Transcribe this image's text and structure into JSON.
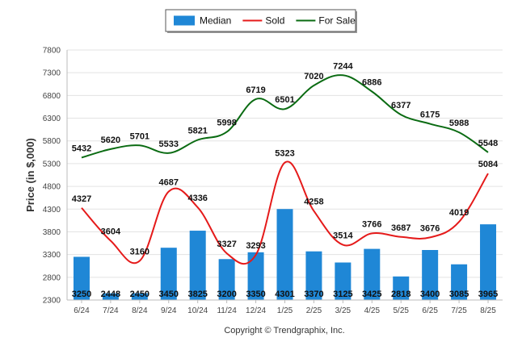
{
  "chart_data": {
    "type": "bar",
    "categories": [
      "6/24",
      "7/24",
      "8/24",
      "9/24",
      "10/24",
      "11/24",
      "12/24",
      "1/25",
      "2/25",
      "3/25",
      "4/25",
      "5/25",
      "6/25",
      "7/25",
      "8/25"
    ],
    "ylabel": "Price (in $,000)",
    "ylim": [
      2300,
      7800
    ],
    "yticks": [
      2300,
      2800,
      3300,
      3800,
      4300,
      4800,
      5300,
      5800,
      6300,
      6800,
      7300,
      7800
    ],
    "grid": true,
    "legend_position": "top-center",
    "series": [
      {
        "name": "Median",
        "kind": "bar",
        "color": "#1f87d6",
        "values": [
          3250,
          2448,
          2450,
          3450,
          3825,
          3200,
          3350,
          4301,
          3370,
          3125,
          3425,
          2818,
          3400,
          3085,
          3965
        ]
      },
      {
        "name": "Sold",
        "kind": "line",
        "color": "#e51a1a",
        "values": [
          4327,
          3604,
          3160,
          4687,
          4336,
          3327,
          3293,
          5323,
          4258,
          3514,
          3766,
          3687,
          3676,
          4019,
          5084
        ]
      },
      {
        "name": "For Sale",
        "kind": "line",
        "color": "#0a6b12",
        "values": [
          5432,
          5620,
          5701,
          5533,
          5821,
          5998,
          6719,
          6501,
          7020,
          7244,
          6886,
          6377,
          6175,
          5988,
          5548
        ]
      }
    ]
  },
  "footer": {
    "copyright": "Copyright © Trendgraphix, Inc."
  }
}
